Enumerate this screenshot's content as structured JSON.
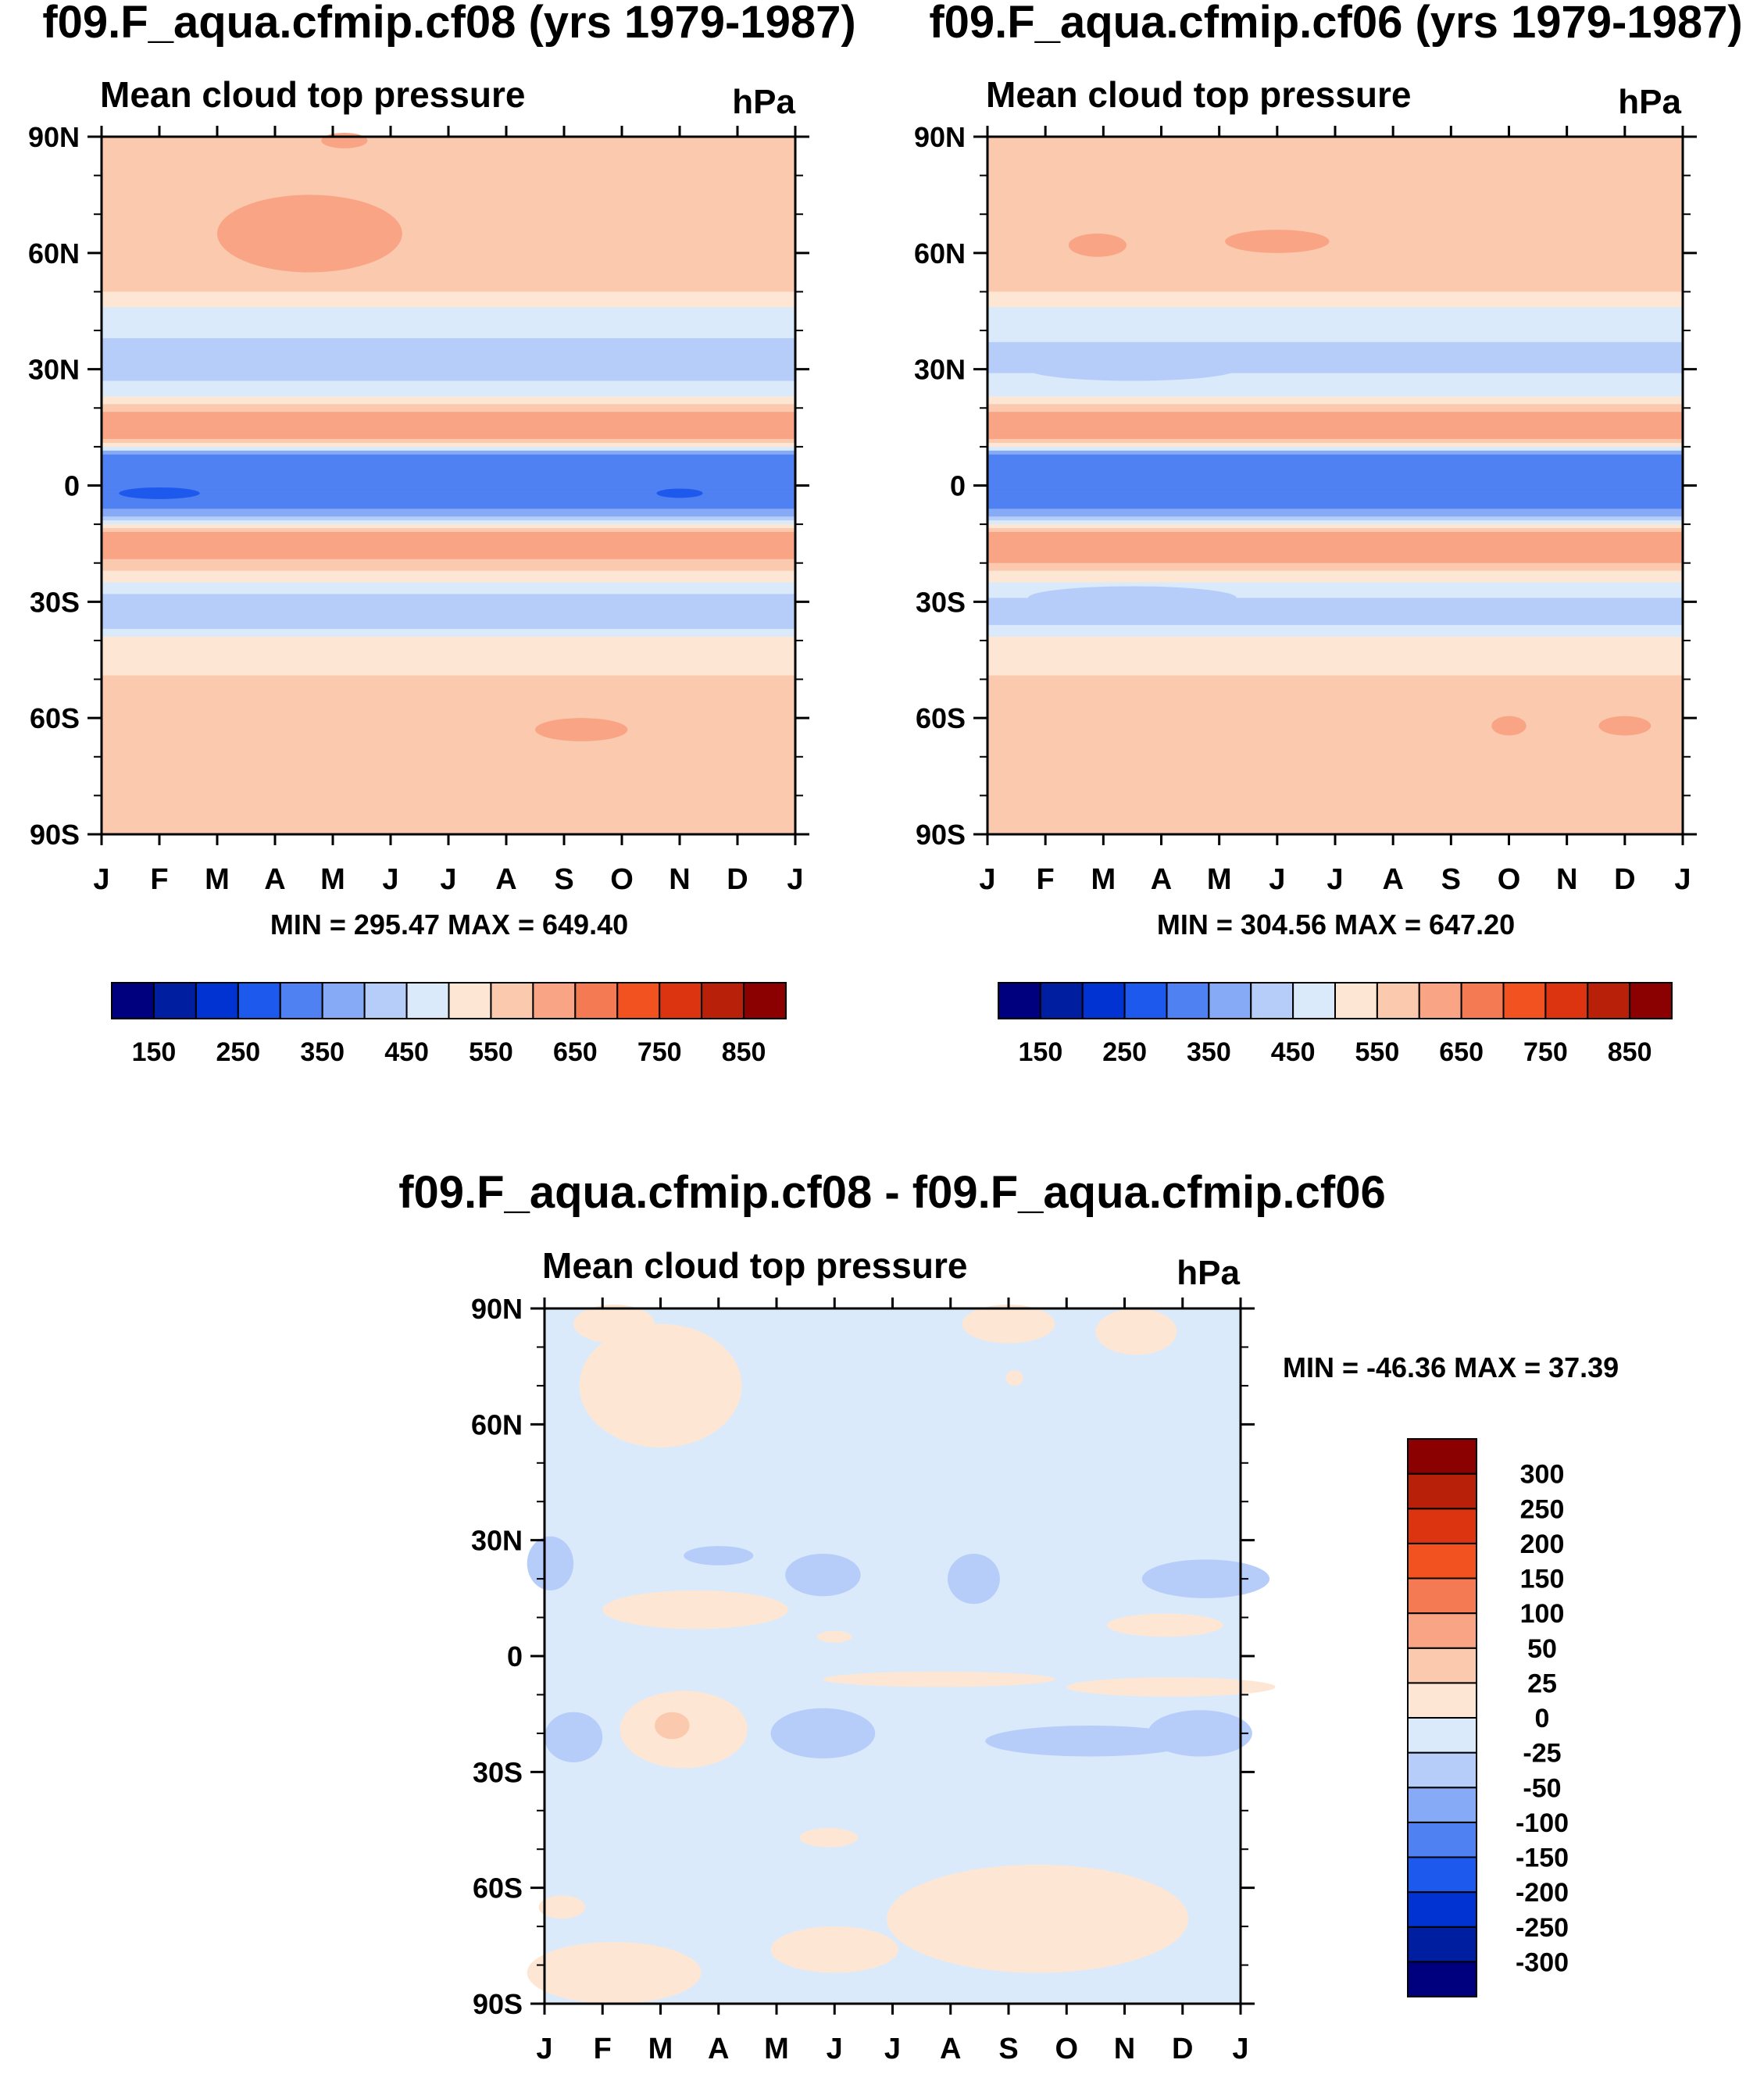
{
  "chart_data": [
    {
      "type": "heatmap",
      "title": "f09.F_aqua.cfmip.cf08 (yrs 1979-1987)",
      "subtitle": "Mean cloud top pressure",
      "units": "hPa",
      "xlabel": "",
      "ylabel": "",
      "x_ticks": [
        "J",
        "F",
        "M",
        "A",
        "M",
        "J",
        "J",
        "A",
        "S",
        "O",
        "N",
        "D",
        "J"
      ],
      "y_ticks": [
        "90N",
        "60N",
        "30N",
        "0",
        "30S",
        "60S",
        "90S"
      ],
      "ylim": [
        -90,
        90
      ],
      "stats": "MIN = 295.47 MAX = 649.40",
      "colorbar": {
        "orientation": "horizontal",
        "levels": [
          150,
          200,
          250,
          300,
          350,
          400,
          450,
          500,
          550,
          600,
          650,
          700,
          750,
          800,
          850
        ],
        "labels": [
          "150",
          "250",
          "350",
          "450",
          "550",
          "650",
          "750",
          "850"
        ],
        "colors": [
          "#00007f",
          "#001ea0",
          "#0033d1",
          "#1e59ee",
          "#4f81f2",
          "#86aaf5",
          "#b6cdfa",
          "#daeafb",
          "#fde7d4",
          "#fbcaae",
          "#f8a485",
          "#f47a54",
          "#f1521f",
          "#dc3410",
          "#b8200a",
          "#8b0000"
        ]
      },
      "zonal_profile": {
        "lat": [
          90,
          80,
          70,
          60,
          52,
          48,
          42,
          36,
          30,
          24,
          20,
          18,
          12,
          10,
          8,
          0,
          -6,
          -10,
          -12,
          -18,
          -22,
          -26,
          -30,
          -36,
          -40,
          -48,
          -52,
          -60,
          -70,
          -90
        ],
        "value": [
          570,
          570,
          575,
          585,
          575,
          520,
          465,
          440,
          415,
          480,
          560,
          620,
          600,
          500,
          330,
          310,
          330,
          500,
          600,
          620,
          560,
          470,
          420,
          440,
          510,
          540,
          575,
          575,
          570,
          570
        ]
      }
    },
    {
      "type": "heatmap",
      "title": "f09.F_aqua.cfmip.cf06 (yrs 1979-1987)",
      "subtitle": "Mean cloud top pressure",
      "units": "hPa",
      "xlabel": "",
      "ylabel": "",
      "x_ticks": [
        "J",
        "F",
        "M",
        "A",
        "M",
        "J",
        "J",
        "A",
        "S",
        "O",
        "N",
        "D",
        "J"
      ],
      "y_ticks": [
        "90N",
        "60N",
        "30N",
        "0",
        "30S",
        "60S",
        "90S"
      ],
      "ylim": [
        -90,
        90
      ],
      "stats": "MIN = 304.56 MAX = 647.20",
      "colorbar": {
        "orientation": "horizontal",
        "levels": [
          150,
          200,
          250,
          300,
          350,
          400,
          450,
          500,
          550,
          600,
          650,
          700,
          750,
          800,
          850
        ],
        "labels": [
          "150",
          "250",
          "350",
          "450",
          "550",
          "650",
          "750",
          "850"
        ],
        "colors": [
          "#00007f",
          "#001ea0",
          "#0033d1",
          "#1e59ee",
          "#4f81f2",
          "#86aaf5",
          "#b6cdfa",
          "#daeafb",
          "#fde7d4",
          "#fbcaae",
          "#f8a485",
          "#f47a54",
          "#f1521f",
          "#dc3410",
          "#b8200a",
          "#8b0000"
        ]
      },
      "zonal_profile": {
        "lat": [
          90,
          80,
          70,
          60,
          52,
          48,
          42,
          36,
          30,
          24,
          20,
          18,
          12,
          10,
          8,
          0,
          -6,
          -10,
          -12,
          -18,
          -22,
          -26,
          -30,
          -36,
          -40,
          -48,
          -52,
          -60,
          -70,
          -90
        ],
        "value": [
          570,
          570,
          575,
          580,
          570,
          520,
          470,
          445,
          440,
          490,
          560,
          625,
          605,
          500,
          330,
          310,
          330,
          500,
          605,
          625,
          560,
          470,
          440,
          450,
          510,
          540,
          570,
          575,
          570,
          570
        ]
      }
    },
    {
      "type": "heatmap",
      "title": "f09.F_aqua.cfmip.cf08 - f09.F_aqua.cfmip.cf06",
      "subtitle": "Mean cloud top pressure",
      "units": "hPa",
      "xlabel": "",
      "ylabel": "",
      "x_ticks": [
        "J",
        "F",
        "M",
        "A",
        "M",
        "J",
        "J",
        "A",
        "S",
        "O",
        "N",
        "D",
        "J"
      ],
      "y_ticks": [
        "90N",
        "60N",
        "30N",
        "0",
        "30S",
        "60S",
        "90S"
      ],
      "ylim": [
        -90,
        90
      ],
      "stats": "MIN = -46.36 MAX =  37.39",
      "colorbar": {
        "orientation": "vertical",
        "levels": [
          -300,
          -250,
          -200,
          -150,
          -100,
          -50,
          -25,
          0,
          25,
          50,
          100,
          150,
          200,
          250,
          300
        ],
        "labels": [
          "-300",
          "-250",
          "-200",
          "-150",
          "-100",
          "-50",
          "-25",
          "0",
          "25",
          "50",
          "100",
          "150",
          "200",
          "250",
          "300"
        ],
        "colors": [
          "#00007f",
          "#001ea0",
          "#0033d1",
          "#1e59ee",
          "#4f81f2",
          "#86aaf5",
          "#b6cdfa",
          "#daeafb",
          "#fde7d4",
          "#fbcaae",
          "#f8a485",
          "#f47a54",
          "#f1521f",
          "#dc3410",
          "#b8200a",
          "#8b0000"
        ]
      },
      "background_value": -10,
      "features": [
        {
          "month": 2.0,
          "lat": 70,
          "width": 2.8,
          "height": 32,
          "value": 10
        },
        {
          "month": 1.2,
          "lat": 86,
          "width": 1.4,
          "height": 10,
          "value": 10
        },
        {
          "month": 8.0,
          "lat": 86,
          "width": 1.6,
          "height": 10,
          "value": 10
        },
        {
          "month": 10.2,
          "lat": 84,
          "width": 1.4,
          "height": 12,
          "value": 10
        },
        {
          "month": 8.1,
          "lat": 72,
          "width": 0.3,
          "height": 4,
          "value": 10
        },
        {
          "month": 0.1,
          "lat": 24,
          "width": 0.8,
          "height": 14,
          "value": -30
        },
        {
          "month": 3.0,
          "lat": 26,
          "width": 1.2,
          "height": 5,
          "value": -30
        },
        {
          "month": 4.8,
          "lat": 21,
          "width": 1.3,
          "height": 11,
          "value": -30
        },
        {
          "month": 7.4,
          "lat": 20,
          "width": 0.9,
          "height": 13,
          "value": -30
        },
        {
          "month": 11.4,
          "lat": 20,
          "width": 2.2,
          "height": 10,
          "value": -30
        },
        {
          "month": 2.6,
          "lat": 12,
          "width": 3.2,
          "height": 10,
          "value": 10
        },
        {
          "month": 5.0,
          "lat": 5,
          "width": 0.6,
          "height": 3,
          "value": 10
        },
        {
          "month": 10.7,
          "lat": 8,
          "width": 2.0,
          "height": 6,
          "value": 10
        },
        {
          "month": 2.4,
          "lat": -19,
          "width": 2.2,
          "height": 20,
          "value": 10
        },
        {
          "month": 2.2,
          "lat": -18,
          "width": 0.6,
          "height": 7,
          "value": 30
        },
        {
          "month": 6.8,
          "lat": -6,
          "width": 4.0,
          "height": 4,
          "value": 10
        },
        {
          "month": 10.8,
          "lat": -8,
          "width": 3.6,
          "height": 5,
          "value": 10
        },
        {
          "month": 0.5,
          "lat": -21,
          "width": 1.0,
          "height": 13,
          "value": -30
        },
        {
          "month": 4.8,
          "lat": -20,
          "width": 1.8,
          "height": 13,
          "value": -30
        },
        {
          "month": 9.4,
          "lat": -22,
          "width": 3.6,
          "height": 8,
          "value": -30
        },
        {
          "month": 11.3,
          "lat": -20,
          "width": 1.8,
          "height": 12,
          "value": -30
        },
        {
          "month": 4.9,
          "lat": -47,
          "width": 1.0,
          "height": 5,
          "value": 10
        },
        {
          "month": 8.5,
          "lat": -68,
          "width": 5.2,
          "height": 28,
          "value": 10
        },
        {
          "month": 1.2,
          "lat": -82,
          "width": 3.0,
          "height": 16,
          "value": 10
        },
        {
          "month": 5.0,
          "lat": -76,
          "width": 2.2,
          "height": 12,
          "value": 10
        },
        {
          "month": 0.3,
          "lat": -65,
          "width": 0.8,
          "height": 6,
          "value": 10
        }
      ]
    }
  ]
}
